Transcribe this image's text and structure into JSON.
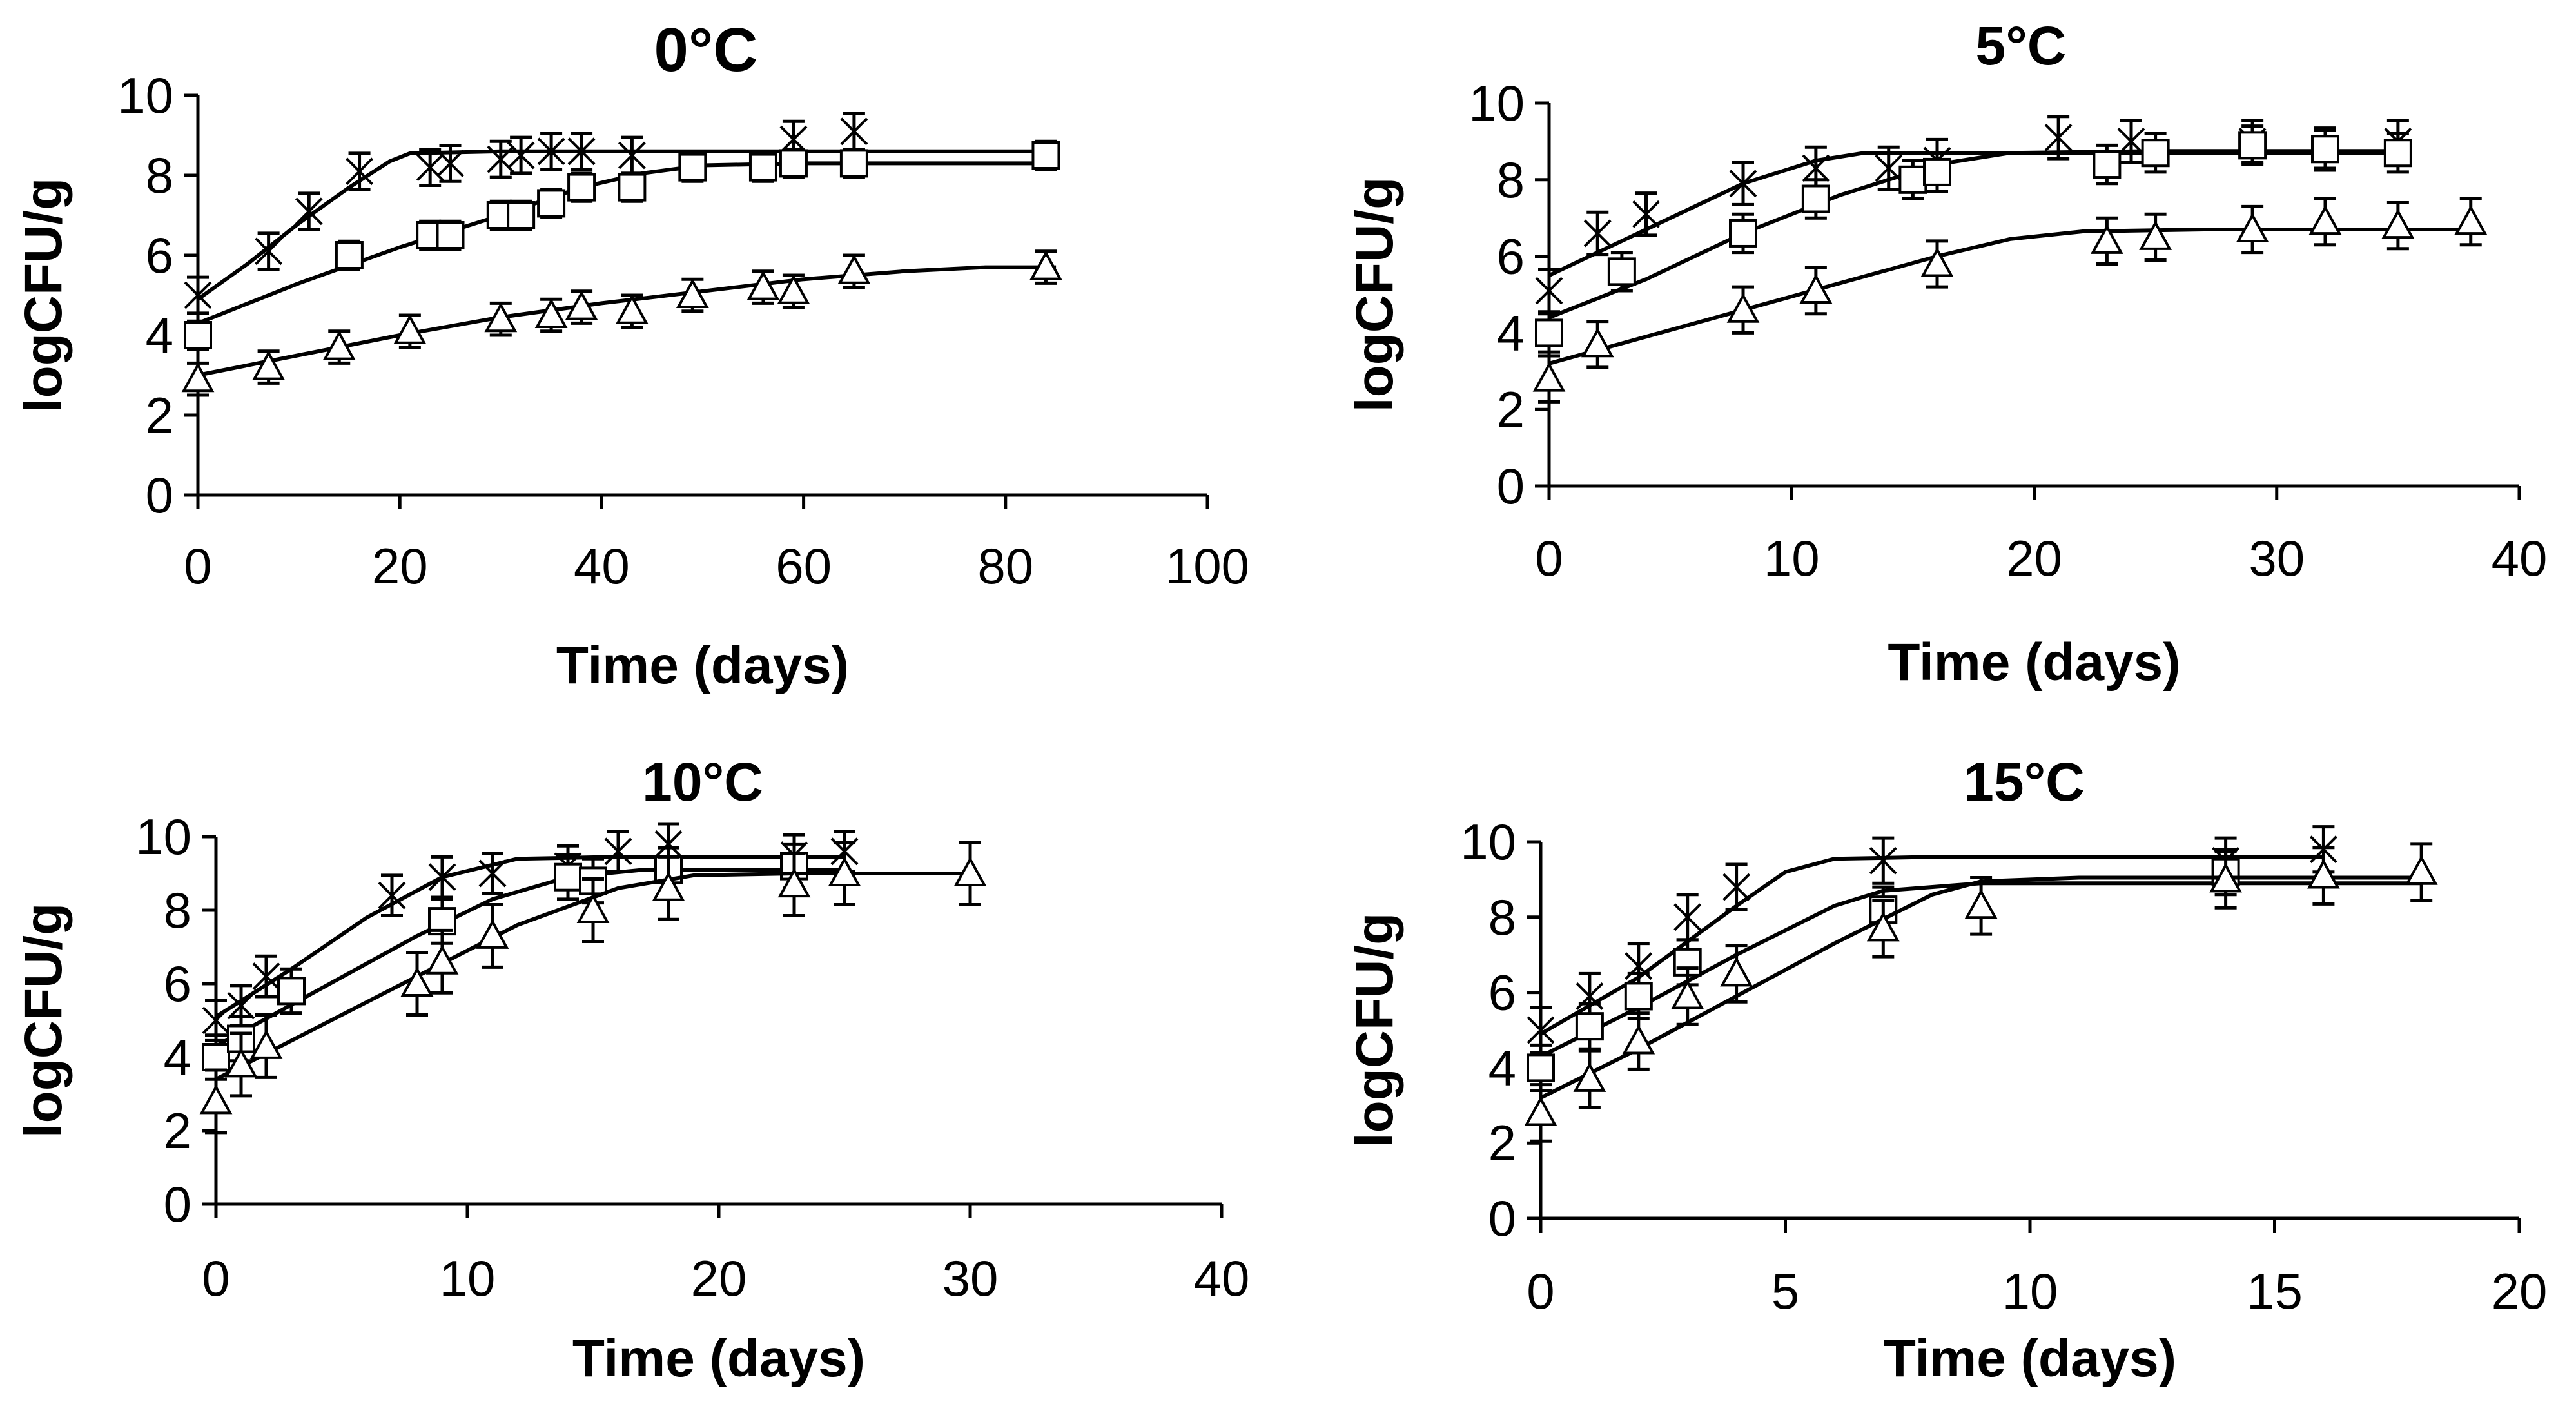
{
  "chart_data": [
    {
      "type": "scatter",
      "title": "0°C",
      "xlabel": "Time (days)",
      "ylabel": "logCFU/g",
      "xlim": [
        0,
        100
      ],
      "ylim": [
        0,
        10
      ],
      "xticks": [
        "0",
        "20",
        "40",
        "60",
        "80",
        "100"
      ],
      "yticks": [
        "0",
        "2",
        "4",
        "6",
        "8",
        "10"
      ],
      "grid": false,
      "series": [
        {
          "name": "cross",
          "marker": "x",
          "points": [
            [
              0,
              5.0
            ],
            [
              7,
              6.1
            ],
            [
              11,
              7.1
            ],
            [
              16,
              8.1
            ],
            [
              23,
              8.2
            ],
            [
              25,
              8.3
            ],
            [
              30,
              8.4
            ],
            [
              32,
              8.5
            ],
            [
              35,
              8.6
            ],
            [
              38,
              8.6
            ],
            [
              43,
              8.5
            ],
            [
              59,
              8.9
            ],
            [
              65,
              9.1
            ]
          ],
          "err": 0.45,
          "fit": [
            [
              0,
              4.9
            ],
            [
              5,
              5.8
            ],
            [
              10,
              6.8
            ],
            [
              15,
              7.7
            ],
            [
              19,
              8.35
            ],
            [
              21,
              8.55
            ],
            [
              30,
              8.6
            ],
            [
              85,
              8.6
            ]
          ]
        },
        {
          "name": "square",
          "marker": "s",
          "points": [
            [
              0,
              4.0
            ],
            [
              15,
              6.0
            ],
            [
              23,
              6.5
            ],
            [
              25,
              6.5
            ],
            [
              30,
              7.0
            ],
            [
              32,
              7.0
            ],
            [
              35,
              7.3
            ],
            [
              38,
              7.7
            ],
            [
              43,
              7.7
            ],
            [
              49,
              8.2
            ],
            [
              56,
              8.2
            ],
            [
              59,
              8.3
            ],
            [
              65,
              8.3
            ],
            [
              84,
              8.5
            ]
          ],
          "err": 0.35,
          "fit": [
            [
              0,
              4.3
            ],
            [
              10,
              5.3
            ],
            [
              20,
              6.2
            ],
            [
              30,
              7.0
            ],
            [
              38,
              7.7
            ],
            [
              44,
              8.05
            ],
            [
              50,
              8.25
            ],
            [
              60,
              8.3
            ],
            [
              85,
              8.3
            ]
          ]
        },
        {
          "name": "triangle",
          "marker": "t",
          "points": [
            [
              0,
              2.9
            ],
            [
              7,
              3.2
            ],
            [
              14,
              3.7
            ],
            [
              21,
              4.1
            ],
            [
              30,
              4.4
            ],
            [
              35,
              4.5
            ],
            [
              38,
              4.7
            ],
            [
              43,
              4.6
            ],
            [
              49,
              5.0
            ],
            [
              56,
              5.2
            ],
            [
              59,
              5.1
            ],
            [
              65,
              5.6
            ],
            [
              84,
              5.7
            ]
          ],
          "err": 0.4,
          "fit": [
            [
              0,
              3.0
            ],
            [
              10,
              3.5
            ],
            [
              20,
              4.0
            ],
            [
              30,
              4.45
            ],
            [
              40,
              4.8
            ],
            [
              50,
              5.1
            ],
            [
              60,
              5.4
            ],
            [
              70,
              5.6
            ],
            [
              78,
              5.7
            ],
            [
              85,
              5.7
            ]
          ]
        }
      ]
    },
    {
      "type": "scatter",
      "title": "5°C",
      "xlabel": "Time (days)",
      "ylabel": "logCFU/g",
      "xlim": [
        0,
        40
      ],
      "ylim": [
        0,
        10
      ],
      "xticks": [
        "0",
        "10",
        "20",
        "30",
        "40"
      ],
      "yticks": [
        "0",
        "2",
        "4",
        "6",
        "8",
        "10"
      ],
      "grid": false,
      "series": [
        {
          "name": "cross",
          "marker": "x",
          "points": [
            [
              0,
              5.1
            ],
            [
              2,
              6.6
            ],
            [
              4,
              7.1
            ],
            [
              8,
              7.9
            ],
            [
              11,
              8.3
            ],
            [
              14,
              8.3
            ],
            [
              16,
              8.5
            ],
            [
              21,
              9.1
            ],
            [
              24,
              9.0
            ],
            [
              29,
              9.0
            ],
            [
              32,
              8.8
            ],
            [
              35,
              9.0
            ]
          ],
          "err": 0.55,
          "fit": [
            [
              0,
              5.5
            ],
            [
              4,
              6.7
            ],
            [
              8,
              7.9
            ],
            [
              11,
              8.5
            ],
            [
              13,
              8.7
            ],
            [
              20,
              8.7
            ],
            [
              35,
              8.7
            ]
          ]
        },
        {
          "name": "square",
          "marker": "s",
          "points": [
            [
              0,
              4.0
            ],
            [
              3,
              5.6
            ],
            [
              8,
              6.6
            ],
            [
              11,
              7.5
            ],
            [
              15,
              8.0
            ],
            [
              16,
              8.2
            ],
            [
              23,
              8.4
            ],
            [
              25,
              8.7
            ],
            [
              29,
              8.9
            ],
            [
              32,
              8.8
            ],
            [
              35,
              8.7
            ]
          ],
          "err": 0.5,
          "fit": [
            [
              0,
              4.4
            ],
            [
              4,
              5.4
            ],
            [
              8,
              6.6
            ],
            [
              12,
              7.6
            ],
            [
              16,
              8.4
            ],
            [
              19,
              8.7
            ],
            [
              25,
              8.75
            ],
            [
              35,
              8.75
            ]
          ]
        },
        {
          "name": "triangle",
          "marker": "t",
          "points": [
            [
              0,
              2.8
            ],
            [
              2,
              3.7
            ],
            [
              8,
              4.6
            ],
            [
              11,
              5.1
            ],
            [
              16,
              5.8
            ],
            [
              23,
              6.4
            ],
            [
              25,
              6.5
            ],
            [
              29,
              6.7
            ],
            [
              32,
              6.9
            ],
            [
              35,
              6.8
            ],
            [
              38,
              6.9
            ]
          ],
          "err": 0.6,
          "fit": [
            [
              0,
              3.2
            ],
            [
              4,
              3.9
            ],
            [
              8,
              4.6
            ],
            [
              12,
              5.3
            ],
            [
              16,
              6.0
            ],
            [
              19,
              6.45
            ],
            [
              22,
              6.65
            ],
            [
              27,
              6.7
            ],
            [
              38,
              6.7
            ]
          ]
        }
      ]
    },
    {
      "type": "scatter",
      "title": "10°C",
      "xlabel": "Time (days)",
      "ylabel": "logCFU/g",
      "xlim": [
        0,
        40
      ],
      "ylim": [
        0,
        10
      ],
      "xticks": [
        "0",
        "10",
        "20",
        "30",
        "40"
      ],
      "yticks": [
        "0",
        "2",
        "4",
        "6",
        "8",
        "10"
      ],
      "grid": false,
      "series": [
        {
          "name": "cross",
          "marker": "x",
          "points": [
            [
              0,
              5.0
            ],
            [
              1,
              5.4
            ],
            [
              2,
              6.2
            ],
            [
              7,
              8.4
            ],
            [
              9,
              8.9
            ],
            [
              11,
              9.0
            ],
            [
              14,
              9.2
            ],
            [
              16,
              9.6
            ],
            [
              18,
              9.8
            ],
            [
              23,
              9.5
            ],
            [
              25,
              9.6
            ]
          ],
          "err": 0.55,
          "fit": [
            [
              0,
              5.1
            ],
            [
              3,
              6.4
            ],
            [
              6,
              7.8
            ],
            [
              9,
              8.9
            ],
            [
              12,
              9.4
            ],
            [
              16,
              9.45
            ],
            [
              25,
              9.45
            ]
          ]
        },
        {
          "name": "square",
          "marker": "s",
          "points": [
            [
              0,
              4.0
            ],
            [
              1,
              4.5
            ],
            [
              3,
              5.8
            ],
            [
              9,
              7.7
            ],
            [
              14,
              8.9
            ],
            [
              15,
              8.8
            ],
            [
              18,
              9.1
            ],
            [
              23,
              9.2
            ]
          ],
          "err": 0.6,
          "fit": [
            [
              0,
              4.3
            ],
            [
              4,
              5.8
            ],
            [
              8,
              7.3
            ],
            [
              11,
              8.3
            ],
            [
              14,
              8.9
            ],
            [
              17,
              9.1
            ],
            [
              25,
              9.1
            ]
          ]
        },
        {
          "name": "triangle",
          "marker": "t",
          "points": [
            [
              0,
              2.8
            ],
            [
              1,
              3.8
            ],
            [
              2,
              4.3
            ],
            [
              8,
              6.0
            ],
            [
              9,
              6.6
            ],
            [
              11,
              7.3
            ],
            [
              15,
              8.0
            ],
            [
              18,
              8.6
            ],
            [
              23,
              8.7
            ],
            [
              25,
              9.0
            ],
            [
              30,
              9.0
            ]
          ],
          "err": 0.85,
          "fit": [
            [
              0,
              3.4
            ],
            [
              4,
              4.8
            ],
            [
              8,
              6.2
            ],
            [
              12,
              7.6
            ],
            [
              16,
              8.6
            ],
            [
              19,
              8.95
            ],
            [
              23,
              9.0
            ],
            [
              30,
              9.0
            ]
          ]
        }
      ]
    },
    {
      "type": "scatter",
      "title": "15°C",
      "xlabel": "Time (days)",
      "ylabel": "logCFU/g",
      "xlim": [
        0,
        20
      ],
      "ylim": [
        0,
        10
      ],
      "xticks": [
        "0",
        "5",
        "10",
        "15",
        "20"
      ],
      "yticks": [
        "0",
        "2",
        "4",
        "6",
        "8",
        "10"
      ],
      "grid": false,
      "series": [
        {
          "name": "cross",
          "marker": "x",
          "points": [
            [
              0,
              5.0
            ],
            [
              1,
              5.9
            ],
            [
              2,
              6.7
            ],
            [
              3,
              8.0
            ],
            [
              4,
              8.8
            ],
            [
              7,
              9.5
            ],
            [
              14,
              9.5
            ],
            [
              16,
              9.8
            ]
          ],
          "err": 0.6,
          "fit": [
            [
              0,
              4.9
            ],
            [
              2,
              6.4
            ],
            [
              4,
              8.3
            ],
            [
              5,
              9.2
            ],
            [
              6,
              9.55
            ],
            [
              8,
              9.6
            ],
            [
              16,
              9.6
            ]
          ]
        },
        {
          "name": "square",
          "marker": "s",
          "points": [
            [
              0,
              4.0
            ],
            [
              1,
              5.1
            ],
            [
              2,
              5.9
            ],
            [
              3,
              6.8
            ],
            [
              7,
              8.2
            ],
            [
              14,
              9.2
            ]
          ],
          "err": 0.6,
          "fit": [
            [
              0,
              4.3
            ],
            [
              2,
              5.6
            ],
            [
              4,
              7.0
            ],
            [
              6,
              8.3
            ],
            [
              7,
              8.7
            ],
            [
              9,
              8.9
            ],
            [
              18,
              8.9
            ]
          ]
        },
        {
          "name": "triangle",
          "marker": "t",
          "points": [
            [
              0,
              2.8
            ],
            [
              1,
              3.7
            ],
            [
              2,
              4.7
            ],
            [
              3,
              5.9
            ],
            [
              4,
              6.5
            ],
            [
              7,
              7.7
            ],
            [
              9,
              8.3
            ],
            [
              14,
              9.0
            ],
            [
              16,
              9.1
            ],
            [
              18,
              9.2
            ]
          ],
          "err": 0.75,
          "fit": [
            [
              0,
              3.2
            ],
            [
              2,
              4.5
            ],
            [
              4,
              5.9
            ],
            [
              6,
              7.3
            ],
            [
              8,
              8.6
            ],
            [
              9,
              8.95
            ],
            [
              11,
              9.05
            ],
            [
              18,
              9.05
            ]
          ]
        }
      ]
    }
  ]
}
